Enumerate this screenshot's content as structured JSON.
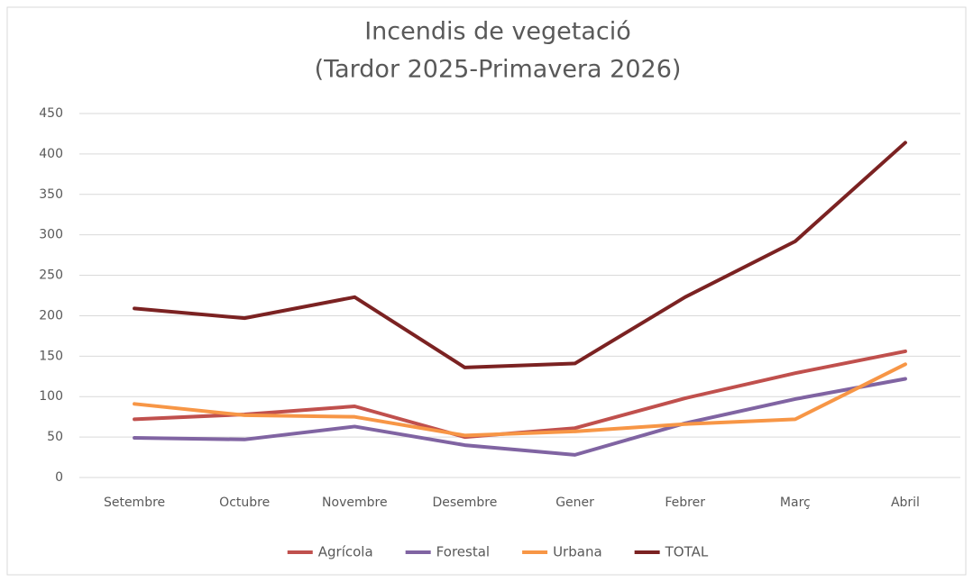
{
  "chart_data": {
    "type": "line",
    "title": [
      "Incendis de vegetació",
      "(Tardor 2025-Primavera 2026)"
    ],
    "categories": [
      "Setembre",
      "Octubre",
      "Novembre",
      "Desembre",
      "Gener",
      "Febrer",
      "Març",
      "Abril"
    ],
    "series": [
      {
        "name": "Agrícola",
        "color": "#c0504d",
        "values": [
          72,
          78,
          88,
          50,
          61,
          98,
          129,
          156
        ]
      },
      {
        "name": "Forestal",
        "color": "#8064a2",
        "values": [
          49,
          47,
          63,
          40,
          28,
          67,
          97,
          122
        ]
      },
      {
        "name": "Urbana",
        "color": "#f79646",
        "values": [
          91,
          77,
          75,
          52,
          57,
          66,
          72,
          140
        ]
      },
      {
        "name": "TOTAL",
        "color": "#7b2222",
        "values": [
          209,
          197,
          223,
          136,
          141,
          223,
          292,
          414
        ]
      }
    ],
    "ylim": [
      0,
      450
    ],
    "yticks": [
      0,
      50,
      100,
      150,
      200,
      250,
      300,
      350,
      400,
      450
    ],
    "grid": true,
    "legend": "bottom"
  }
}
